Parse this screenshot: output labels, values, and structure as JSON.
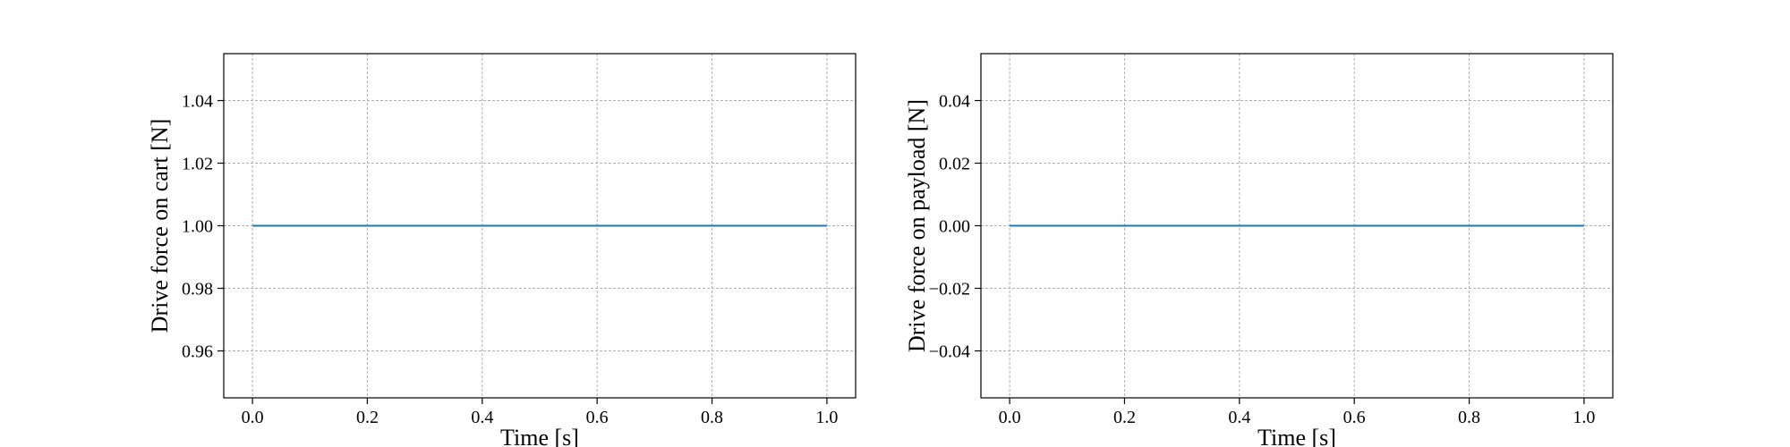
{
  "chart_data": [
    {
      "type": "line",
      "title": "",
      "xlabel": "Time [s]",
      "ylabel": "Drive force on cart [N]",
      "xlim": [
        -0.05,
        1.05
      ],
      "ylim": [
        0.945,
        1.055
      ],
      "xticks": [
        0.0,
        0.2,
        0.4,
        0.6,
        0.8,
        1.0
      ],
      "xtick_labels": [
        "0.0",
        "0.2",
        "0.4",
        "0.6",
        "0.8",
        "1.0"
      ],
      "yticks": [
        0.96,
        0.98,
        1.0,
        1.02,
        1.04
      ],
      "ytick_labels": [
        "0.96",
        "0.98",
        "1.00",
        "1.02",
        "1.04"
      ],
      "grid": true,
      "series": [
        {
          "x": [
            0.0,
            1.0
          ],
          "y": [
            1.0,
            1.0
          ],
          "color": "#1f77b4"
        }
      ]
    },
    {
      "type": "line",
      "title": "",
      "xlabel": "Time [s]",
      "ylabel": "Drive force on payload [N]",
      "xlim": [
        -0.05,
        1.05
      ],
      "ylim": [
        -0.055,
        0.055
      ],
      "xticks": [
        0.0,
        0.2,
        0.4,
        0.6,
        0.8,
        1.0
      ],
      "xtick_labels": [
        "0.0",
        "0.2",
        "0.4",
        "0.6",
        "0.8",
        "1.0"
      ],
      "yticks": [
        -0.04,
        -0.02,
        0.0,
        0.02,
        0.04
      ],
      "ytick_labels": [
        "−0.04",
        "−0.02",
        "0.00",
        "0.02",
        "0.04"
      ],
      "grid": true,
      "series": [
        {
          "x": [
            0.0,
            1.0
          ],
          "y": [
            0.0,
            0.0
          ],
          "color": "#1f77b4"
        }
      ]
    }
  ]
}
